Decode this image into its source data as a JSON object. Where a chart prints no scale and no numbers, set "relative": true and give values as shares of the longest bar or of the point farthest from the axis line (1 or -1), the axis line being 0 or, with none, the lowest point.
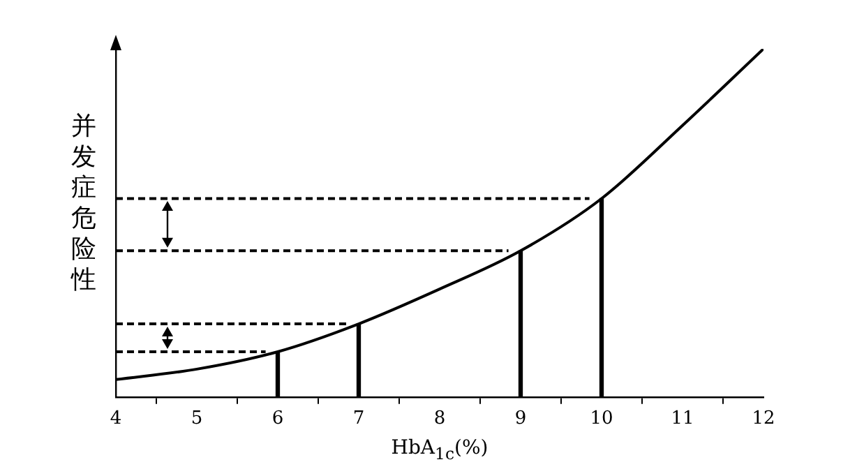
{
  "chart_data": {
    "type": "line",
    "xlabel": "HbA$_{1c}$(%)",
    "ylabel": "并发症危险性",
    "relative": true,
    "xlim": [
      4,
      12
    ],
    "xticks": [
      4,
      5,
      6,
      7,
      8,
      9,
      10,
      11,
      12
    ],
    "grid": false,
    "legend": false,
    "marker": "none",
    "series": [
      {
        "color": "#000000",
        "x": [
          4,
          5,
          6,
          7,
          8,
          9,
          10,
          11,
          12
        ],
        "values": [
          0.05,
          0.08,
          0.13,
          0.21,
          0.31,
          0.42,
          0.57,
          0.78,
          1
        ]
      },
      {
        "type": "bar",
        "color": "#000000",
        "x": [
          6,
          7,
          9,
          10
        ],
        "values": [
          0.13,
          0.21,
          0.42,
          0.57
        ]
      },
      {
        "color": "#000000",
        "line_style": "dashed",
        "x": [
          4,
          5.85
        ],
        "values": [
          0.13,
          0.13
        ]
      },
      {
        "color": "#000000",
        "line_style": "dashed",
        "x": [
          4,
          6.85
        ],
        "values": [
          0.21,
          0.21
        ]
      },
      {
        "color": "#000000",
        "line_style": "dashed",
        "x": [
          4,
          8.85
        ],
        "values": [
          0.42,
          0.42
        ]
      },
      {
        "color": "#000000",
        "line_style": "dashed",
        "x": [
          4,
          9.85
        ],
        "values": [
          0.57,
          0.57
        ]
      }
    ]
  }
}
